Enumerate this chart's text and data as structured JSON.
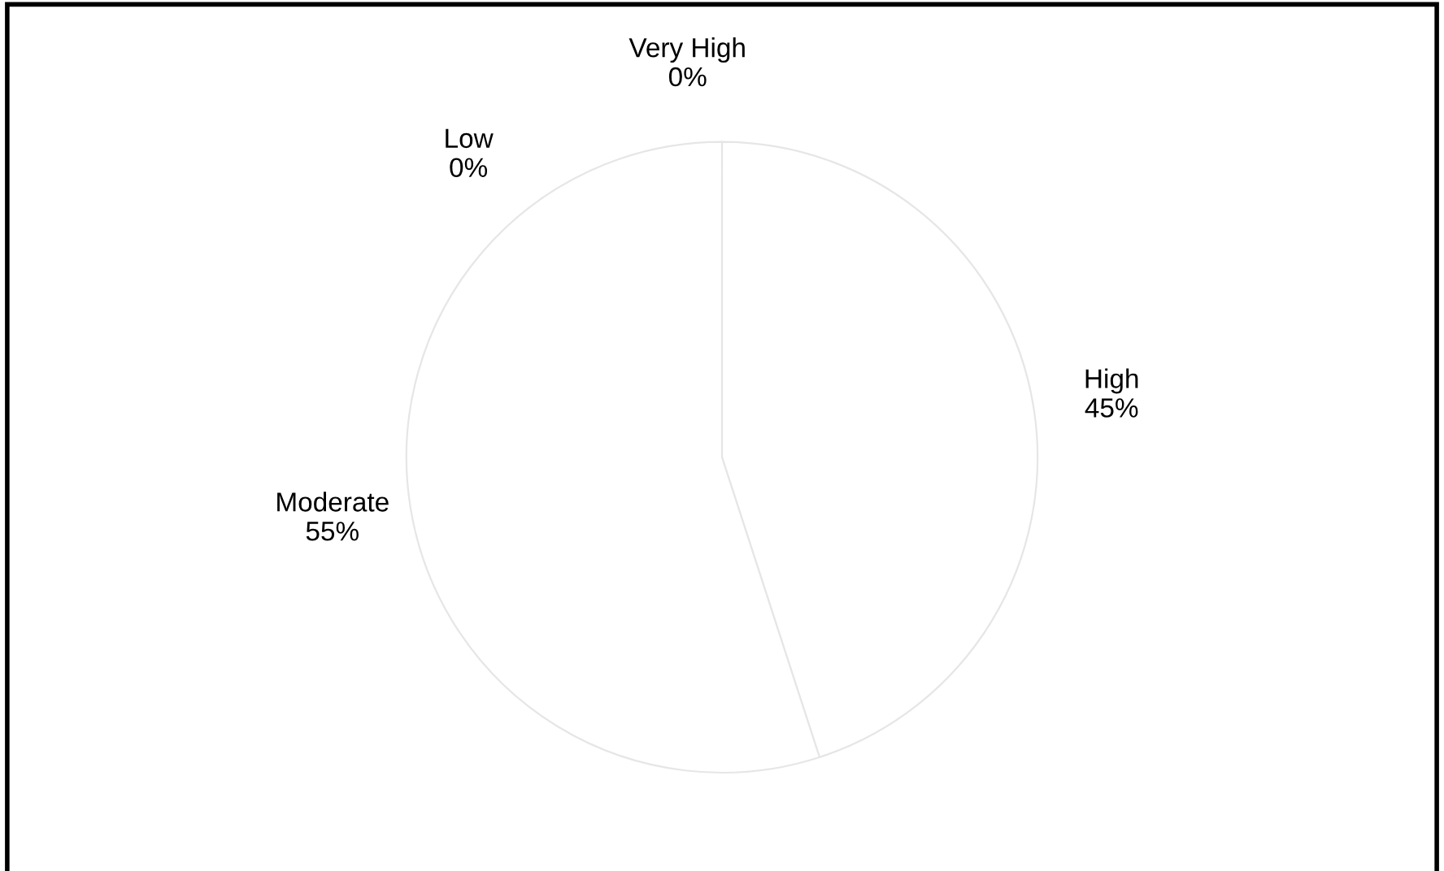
{
  "chart_data": {
    "type": "pie",
    "categories": [
      "Low",
      "Very High",
      "High",
      "Moderate"
    ],
    "values": [
      0,
      0,
      45,
      55
    ],
    "colors": [
      "#ffffff",
      "#ffffff",
      "#ffffff",
      "#ffffff"
    ],
    "value_labels": [
      "0%",
      "0%",
      "45%",
      "55%"
    ]
  }
}
